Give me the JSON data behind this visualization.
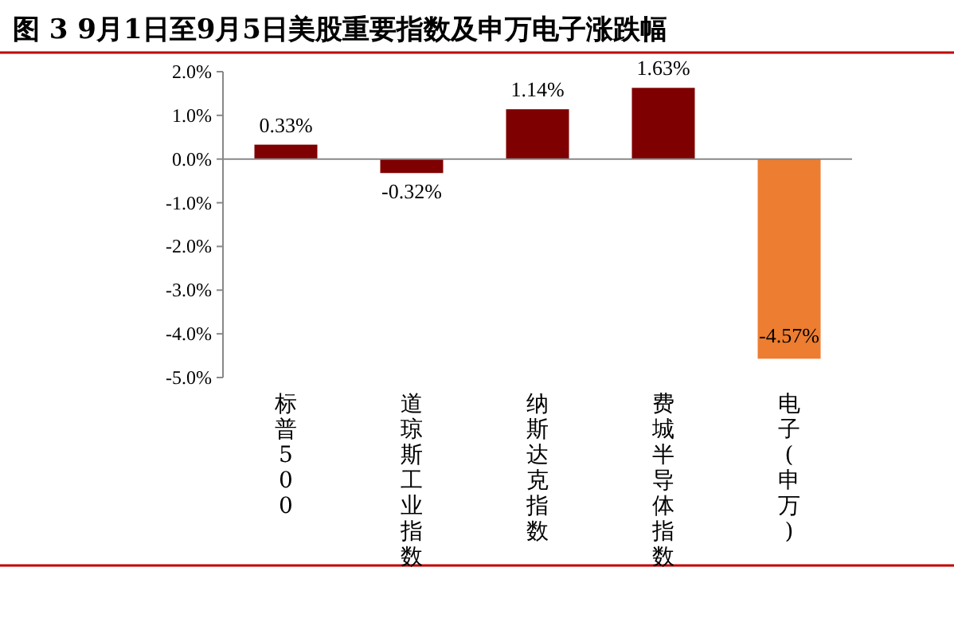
{
  "chart_data": {
    "type": "bar",
    "title": "图 3 9月1日至9月5日美股重要指数及申万电子涨跌幅",
    "categories": [
      "标普500",
      "道琼斯工业指数",
      "纳斯达克指数",
      "费城半导体指数",
      "电子(申万)"
    ],
    "values": [
      0.33,
      -0.32,
      1.14,
      1.63,
      -4.57
    ],
    "colors": [
      "#7f0000",
      "#7f0000",
      "#7f0000",
      "#7f0000",
      "#ed7d31"
    ],
    "value_labels": [
      "0.33%",
      "-0.32%",
      "1.14%",
      "1.63%",
      "-4.57%"
    ],
    "ylim": [
      -5,
      2
    ],
    "yticks": [
      {
        "value": -5,
        "label": "-5.0%"
      },
      {
        "value": -4,
        "label": "-4.0%"
      },
      {
        "value": -3,
        "label": "-3.0%"
      },
      {
        "value": -2,
        "label": "-2.0%"
      },
      {
        "value": -1,
        "label": "-1.0%"
      },
      {
        "value": 0,
        "label": "0.0%"
      },
      {
        "value": 1,
        "label": "1.0%"
      },
      {
        "value": 2,
        "label": "2.0%"
      }
    ]
  }
}
